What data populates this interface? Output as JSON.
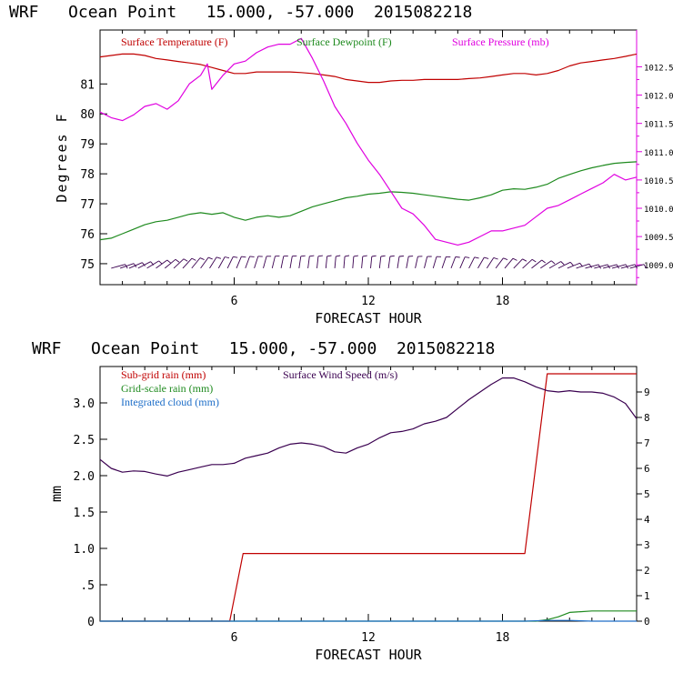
{
  "chart_data": [
    {
      "type": "line",
      "title": "WRF   Ocean Point   15.000, -57.000  2015082218",
      "xlabel": "FORECAST HOUR",
      "ylabel": "Degrees F",
      "xlim": [
        0,
        24
      ],
      "ylim": [
        74.3,
        82.8
      ],
      "xticks": [
        6,
        12,
        18
      ],
      "yticks": [
        75,
        76,
        77,
        78,
        79,
        80,
        81
      ],
      "y2label": "Surface Pressure (mb)",
      "y2lim": [
        1008.65,
        1013.15
      ],
      "y2ticks": [
        "1009.0",
        "1009.5",
        "1010.0",
        "1010.5",
        "1011.0",
        "1011.5",
        "1012.0",
        "1012.5"
      ],
      "colors": {
        "temp": "#c00000",
        "dew": "#1e8a1e",
        "pressure": "#e000e0",
        "wind": "#3a0050"
      },
      "series": [
        {
          "name": "Surface Temperature (F)",
          "axis": "left",
          "color": "#c00000",
          "x": [
            0,
            0.5,
            1,
            1.5,
            2,
            2.5,
            3,
            3.5,
            4,
            4.5,
            5,
            5.5,
            6,
            6.5,
            7,
            7.5,
            8,
            8.5,
            9,
            9.5,
            10,
            10.5,
            11,
            11.5,
            12,
            12.5,
            13,
            13.5,
            14,
            14.5,
            15,
            15.5,
            16,
            16.5,
            17,
            17.5,
            18,
            18.5,
            19,
            19.5,
            20,
            20.5,
            21,
            21.5,
            22,
            22.5,
            23,
            23.5,
            24
          ],
          "values": [
            81.9,
            81.95,
            82.0,
            82.0,
            81.95,
            81.85,
            81.8,
            81.75,
            81.7,
            81.65,
            81.55,
            81.45,
            81.35,
            81.35,
            81.4,
            81.4,
            81.4,
            81.4,
            81.38,
            81.35,
            81.3,
            81.25,
            81.15,
            81.1,
            81.05,
            81.05,
            81.1,
            81.12,
            81.12,
            81.15,
            81.15,
            81.15,
            81.15,
            81.18,
            81.2,
            81.25,
            81.3,
            81.35,
            81.35,
            81.3,
            81.35,
            81.45,
            81.6,
            81.7,
            81.75,
            81.8,
            81.85,
            81.92,
            82.0
          ]
        },
        {
          "name": "Surface Dewpoint (F)",
          "axis": "left",
          "color": "#1e8a1e",
          "x": [
            0,
            0.5,
            1,
            1.5,
            2,
            2.5,
            3,
            3.5,
            4,
            4.5,
            5,
            5.5,
            6,
            6.5,
            7,
            7.5,
            8,
            8.5,
            9,
            9.5,
            10,
            10.5,
            11,
            11.5,
            12,
            12.5,
            13,
            13.5,
            14,
            14.5,
            15,
            15.5,
            16,
            16.5,
            17,
            17.5,
            18,
            18.5,
            19,
            19.5,
            20,
            20.5,
            21,
            21.5,
            22,
            22.5,
            23,
            23.5,
            24
          ],
          "values": [
            75.8,
            75.85,
            76.0,
            76.15,
            76.3,
            76.4,
            76.45,
            76.55,
            76.65,
            76.7,
            76.65,
            76.7,
            76.55,
            76.45,
            76.55,
            76.6,
            76.55,
            76.6,
            76.75,
            76.9,
            77.0,
            77.1,
            77.2,
            77.25,
            77.32,
            77.35,
            77.4,
            77.38,
            77.35,
            77.3,
            77.25,
            77.2,
            77.15,
            77.12,
            77.2,
            77.3,
            77.45,
            77.5,
            77.48,
            77.55,
            77.65,
            77.85,
            77.98,
            78.1,
            78.2,
            78.28,
            78.35,
            78.38,
            78.4
          ]
        },
        {
          "name": "Surface Pressure (mb)",
          "axis": "right",
          "color": "#e000e0",
          "x": [
            0,
            0.5,
            1,
            1.5,
            2,
            2.5,
            3,
            3.5,
            4,
            4.5,
            4.8,
            5,
            5.5,
            6,
            6.5,
            7,
            7.5,
            8,
            8.5,
            9,
            9.5,
            10,
            10.5,
            11,
            11.5,
            12,
            12.5,
            13,
            13.5,
            14,
            14.5,
            15,
            15.5,
            16,
            16.5,
            17,
            17.5,
            18,
            18.5,
            19,
            19.5,
            20,
            20.5,
            21,
            21.5,
            22,
            22.5,
            23,
            23.5,
            24
          ],
          "values": [
            1011.7,
            1011.6,
            1011.55,
            1011.65,
            1011.8,
            1011.85,
            1011.75,
            1011.9,
            1012.2,
            1012.35,
            1012.55,
            1012.1,
            1012.35,
            1012.55,
            1012.6,
            1012.75,
            1012.85,
            1012.9,
            1012.9,
            1013.0,
            1012.65,
            1012.25,
            1011.8,
            1011.5,
            1011.15,
            1010.85,
            1010.6,
            1010.3,
            1010.0,
            1009.9,
            1009.7,
            1009.45,
            1009.4,
            1009.35,
            1009.4,
            1009.5,
            1009.6,
            1009.6,
            1009.65,
            1009.7,
            1009.85,
            1010.0,
            1010.05,
            1010.15,
            1010.25,
            1010.35,
            1010.45,
            1010.6,
            1010.5,
            1010.55
          ]
        },
        {
          "name": "Wind barbs",
          "axis": "left",
          "color": "#3a0050",
          "x": [
            0.5,
            0.9,
            1.3,
            1.7,
            2.1,
            2.5,
            2.9,
            3.3,
            3.7,
            4.1,
            4.5,
            4.9,
            5.3,
            5.7,
            6.1,
            6.5,
            6.9,
            7.3,
            7.7,
            8.1,
            8.5,
            8.9,
            9.3,
            9.7,
            10.1,
            10.5,
            10.9,
            11.3,
            11.7,
            12.1,
            12.5,
            12.9,
            13.3,
            13.7,
            14.1,
            14.5,
            14.9,
            15.3,
            15.7,
            16.1,
            16.5,
            16.9,
            17.3,
            17.7,
            18.1,
            18.5,
            18.9,
            19.3,
            19.7,
            20.1,
            20.5,
            20.9,
            21.3,
            21.7,
            22.1,
            22.5,
            22.9,
            23.3,
            23.7
          ],
          "values": [
            74.85,
            74.85,
            74.85,
            74.85,
            74.85,
            74.85,
            74.85,
            74.85,
            74.85,
            74.85,
            74.85,
            74.85,
            74.85,
            74.85,
            74.85,
            74.85,
            74.85,
            74.85,
            74.85,
            74.85,
            74.85,
            74.85,
            74.85,
            74.85,
            74.85,
            74.85,
            74.85,
            74.85,
            74.85,
            74.85,
            74.85,
            74.85,
            74.85,
            74.85,
            74.85,
            74.85,
            74.85,
            74.85,
            74.85,
            74.85,
            74.85,
            74.85,
            74.85,
            74.85,
            74.85,
            74.85,
            74.85,
            74.85,
            74.85,
            74.85,
            74.85,
            74.85,
            74.85,
            74.85,
            74.85,
            74.85,
            74.85,
            74.85,
            74.85
          ]
        }
      ],
      "legend": [
        "Surface Temperature (F)",
        "Surface Dewpoint (F)",
        "Surface Pressure (mb)"
      ]
    },
    {
      "type": "line",
      "title": "WRF   Ocean Point   15.000, -57.000  2015082218",
      "xlabel": "FORECAST HOUR",
      "ylabel": "mm",
      "xlim": [
        0,
        24
      ],
      "ylim": [
        0,
        3.5
      ],
      "xticks": [
        6,
        12,
        18
      ],
      "yticks": [
        0,
        0.5,
        1.0,
        1.5,
        2.0,
        2.5,
        3.0
      ],
      "ytick_labels": [
        "0",
        ".5",
        "1.0",
        "1.5",
        "2.0",
        "2.5",
        "3.0"
      ],
      "y2label": "Surface Wind Speed (m/s)",
      "y2lim": [
        0,
        10
      ],
      "y2ticks": [
        "0",
        "1",
        "2",
        "3",
        "4",
        "5",
        "6",
        "7",
        "8",
        "9"
      ],
      "colors": {
        "subgrid": "#c00000",
        "gridscale": "#1e8a1e",
        "cloud": "#1e6ec8",
        "wind": "#3a0050"
      },
      "series": [
        {
          "name": "Sub-grid rain (mm)",
          "axis": "left",
          "color": "#c00000",
          "x": [
            0,
            5.8,
            6.4,
            19.0,
            20.0,
            24
          ],
          "values": [
            0,
            0,
            0.93,
            0.93,
            3.4,
            3.4
          ]
        },
        {
          "name": "Grid-scale rain (mm)",
          "axis": "left",
          "color": "#1e8a1e",
          "x": [
            0,
            19.5,
            20,
            20.5,
            21,
            21.5,
            22,
            24
          ],
          "values": [
            0,
            0,
            0.02,
            0.06,
            0.12,
            0.13,
            0.14,
            0.14
          ]
        },
        {
          "name": "Integrated cloud (mm)",
          "axis": "left",
          "color": "#1e6ec8",
          "x": [
            0,
            19,
            20,
            21,
            22,
            24
          ],
          "values": [
            0,
            0,
            0.01,
            0.01,
            0,
            0
          ]
        },
        {
          "name": "Surface Wind Speed (m/s)",
          "axis": "right",
          "color": "#3a0050",
          "x": [
            0,
            0.5,
            1,
            1.5,
            2,
            2.5,
            3,
            3.5,
            4,
            4.5,
            5,
            5.5,
            6,
            6.5,
            7,
            7.5,
            8,
            8.5,
            9,
            9.5,
            10,
            10.5,
            11,
            11.5,
            12,
            12.5,
            13,
            13.5,
            14,
            14.5,
            15,
            15.5,
            16,
            16.5,
            17,
            17.5,
            18,
            18.5,
            19,
            19.5,
            20,
            20.5,
            21,
            21.5,
            22,
            22.5,
            23,
            23.5,
            24
          ],
          "values": [
            6.35,
            6.0,
            5.85,
            5.9,
            5.88,
            5.78,
            5.7,
            5.85,
            5.95,
            6.05,
            6.15,
            6.15,
            6.2,
            6.4,
            6.5,
            6.6,
            6.8,
            6.95,
            7.0,
            6.95,
            6.85,
            6.65,
            6.6,
            6.8,
            6.95,
            7.2,
            7.4,
            7.45,
            7.55,
            7.75,
            7.85,
            8.0,
            8.35,
            8.7,
            9.0,
            9.3,
            9.55,
            9.55,
            9.4,
            9.2,
            9.05,
            9.0,
            9.05,
            9.0,
            9.0,
            8.95,
            8.8,
            8.55,
            7.95
          ]
        }
      ],
      "legend": [
        "Sub-grid rain (mm)",
        "Grid-scale rain (mm)",
        "Integrated cloud (mm)",
        "Surface Wind Speed (m/s)"
      ]
    }
  ]
}
